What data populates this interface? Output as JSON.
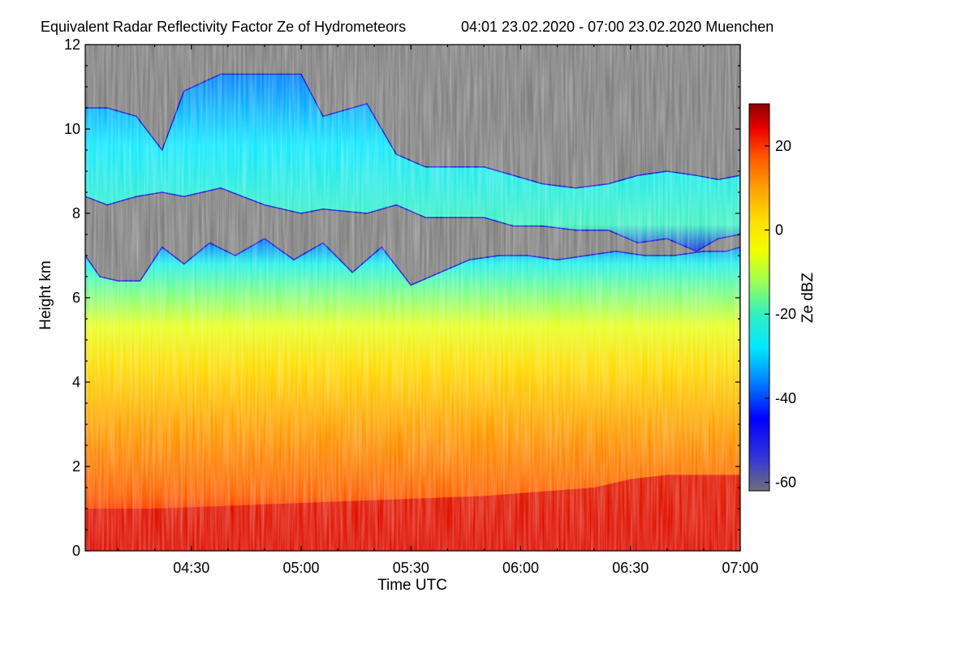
{
  "chart_data": {
    "type": "heatmap",
    "title": "Equivalent Radar Reflectivity Factor Ze of Hydrometeors",
    "subtitle": "04:01 23.02.2020 - 07:00 23.02.2020 Muenchen",
    "xlabel": "Time UTC",
    "ylabel": "Height km",
    "colorbar_label": "Ze dBZ",
    "x_start": "04:01",
    "x_end": "07:00",
    "xlim_minutes": [
      241,
      420
    ],
    "x_ticks": [
      {
        "value": 270,
        "label": "04:30"
      },
      {
        "value": 300,
        "label": "05:00"
      },
      {
        "value": 330,
        "label": "05:30"
      },
      {
        "value": 360,
        "label": "06:00"
      },
      {
        "value": 390,
        "label": "06:30"
      },
      {
        "value": 420,
        "label": "07:00"
      }
    ],
    "ylim": [
      0,
      12
    ],
    "y_ticks": [
      {
        "value": 0,
        "label": "0"
      },
      {
        "value": 2,
        "label": "2"
      },
      {
        "value": 4,
        "label": "4"
      },
      {
        "value": 6,
        "label": "6"
      },
      {
        "value": 8,
        "label": "8"
      },
      {
        "value": 10,
        "label": "10"
      },
      {
        "value": 12,
        "label": "12"
      }
    ],
    "colorbar_range": [
      -60,
      30
    ],
    "colorbar_ticks": [
      {
        "value": 20,
        "label": "20"
      },
      {
        "value": 0,
        "label": "0"
      },
      {
        "value": -20,
        "label": "-20"
      },
      {
        "value": -40,
        "label": "-40"
      },
      {
        "value": -60,
        "label": "-60"
      }
    ],
    "no_echo_color": "#808080",
    "colorscale": [
      {
        "value": -62,
        "color": "#6f6f78"
      },
      {
        "value": -55,
        "color": "#3a3ad0"
      },
      {
        "value": -45,
        "color": "#0000ff"
      },
      {
        "value": -35,
        "color": "#0090ff"
      },
      {
        "value": -28,
        "color": "#00e8ff"
      },
      {
        "value": -20,
        "color": "#30f0c0"
      },
      {
        "value": -12,
        "color": "#a0ff50"
      },
      {
        "value": -5,
        "color": "#f0ff00"
      },
      {
        "value": 2,
        "color": "#ffe000"
      },
      {
        "value": 10,
        "color": "#ffa000"
      },
      {
        "value": 18,
        "color": "#ff5000"
      },
      {
        "value": 24,
        "color": "#ee0000"
      },
      {
        "value": 30,
        "color": "#8b0000"
      }
    ],
    "layers": [
      {
        "name": "upper cirrus",
        "x": [
          241,
          247,
          255,
          262,
          268,
          278,
          290,
          300,
          306,
          318,
          326,
          334,
          340,
          350,
          358,
          366,
          375,
          384,
          392,
          400,
          408,
          414,
          420
        ],
        "base_km": [
          8.4,
          8.2,
          8.4,
          8.5,
          8.4,
          8.6,
          8.2,
          8.0,
          8.1,
          8.0,
          8.2,
          7.9,
          7.9,
          7.9,
          7.7,
          7.7,
          7.6,
          7.6,
          7.3,
          7.4,
          7.1,
          7.4,
          7.5
        ],
        "top_km": [
          10.5,
          10.5,
          10.3,
          9.5,
          10.9,
          11.3,
          11.3,
          11.3,
          10.3,
          10.6,
          9.4,
          9.1,
          9.1,
          9.1,
          8.9,
          8.7,
          8.6,
          8.7,
          8.9,
          9.0,
          8.9,
          8.8,
          8.9
        ],
        "ze_dbz": -24
      },
      {
        "name": "main precipitation column",
        "x": [
          241,
          245,
          250,
          256,
          262,
          268,
          275,
          282,
          290,
          298,
          306,
          314,
          322,
          330,
          338,
          346,
          354,
          362,
          370,
          378,
          386,
          394,
          402,
          410,
          416,
          420
        ],
        "top_km": [
          7.0,
          6.5,
          6.4,
          6.4,
          7.2,
          6.8,
          7.3,
          7.0,
          7.4,
          6.9,
          7.3,
          6.6,
          7.2,
          6.3,
          6.6,
          6.9,
          7.0,
          7.0,
          6.9,
          7.0,
          7.1,
          7.0,
          7.0,
          7.1,
          7.1,
          7.2
        ],
        "ze_dbz": 8
      },
      {
        "name": "melting / rain layer",
        "x": [
          241,
          260,
          290,
          320,
          350,
          380,
          390,
          400,
          410,
          420
        ],
        "top_km": [
          1.0,
          1.0,
          1.1,
          1.2,
          1.3,
          1.5,
          1.7,
          1.8,
          1.8,
          1.8
        ],
        "ze_dbz": 24
      }
    ]
  }
}
